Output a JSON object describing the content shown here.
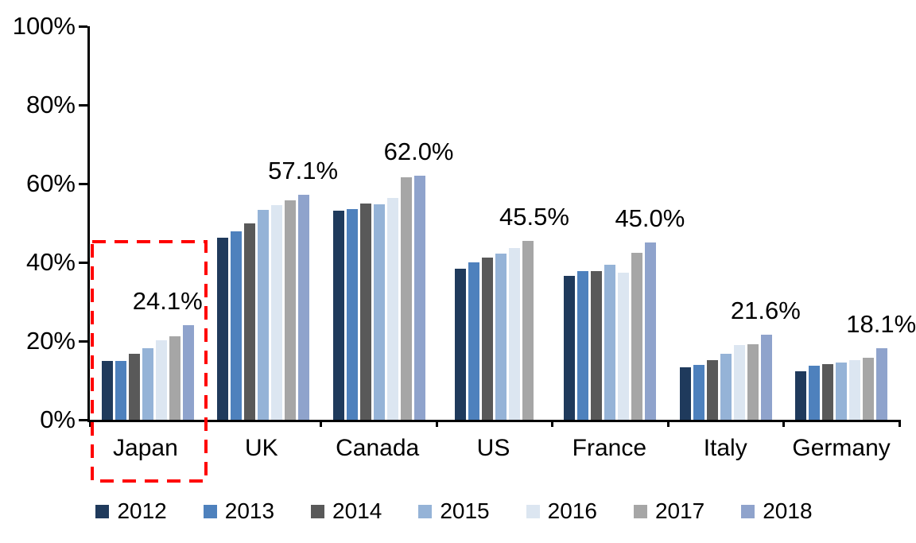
{
  "chart_data": {
    "type": "bar",
    "title": "",
    "xlabel": "",
    "ylabel": "",
    "ylim": [
      0,
      100
    ],
    "grid": false,
    "legend_position": "bottom",
    "categories": [
      "Japan",
      "UK",
      "Canada",
      "US",
      "France",
      "Italy",
      "Germany"
    ],
    "yticks": [
      "0%",
      "20%",
      "40%",
      "60%",
      "80%",
      "100%"
    ],
    "series": [
      {
        "name": "2012",
        "color": "#1F3A5C",
        "values": [
          14.9,
          46.3,
          53.2,
          38.3,
          36.6,
          13.3,
          12.4
        ]
      },
      {
        "name": "2013",
        "color": "#4E81BD",
        "values": [
          15.0,
          47.8,
          53.5,
          40.0,
          37.7,
          14.0,
          13.7
        ]
      },
      {
        "name": "2014",
        "color": "#595959",
        "values": [
          16.8,
          50.0,
          55.0,
          41.2,
          37.7,
          15.2,
          14.2
        ]
      },
      {
        "name": "2015",
        "color": "#95B3D7",
        "values": [
          18.2,
          53.4,
          54.8,
          42.2,
          39.4,
          16.7,
          14.6
        ]
      },
      {
        "name": "2016",
        "color": "#DCE6F1",
        "values": [
          20.2,
          54.5,
          56.3,
          43.6,
          37.4,
          18.9,
          15.2
        ]
      },
      {
        "name": "2017",
        "color": "#A6A6A6",
        "values": [
          21.3,
          55.8,
          61.6,
          45.5,
          42.4,
          19.1,
          15.7
        ]
      },
      {
        "name": "2018",
        "color": "#8FA3CC",
        "values": [
          24.1,
          57.1,
          62.0,
          null,
          45.0,
          21.6,
          18.1
        ]
      }
    ],
    "data_labels": [
      "24.1%",
      "57.1%",
      "62.0%",
      "45.5%",
      "45.0%",
      "21.6%",
      "18.1%"
    ],
    "highlight": {
      "category": "Japan",
      "color": "#FF0000",
      "style": "dashed-box"
    }
  }
}
